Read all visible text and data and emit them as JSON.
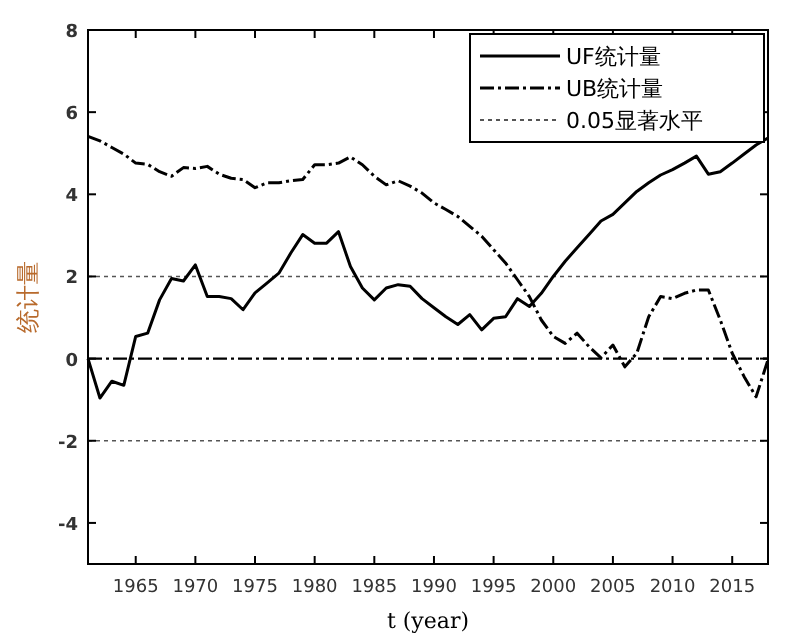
{
  "chart_data": {
    "type": "line",
    "xlabel": "t (year)",
    "ylabel": "统计量",
    "x": [
      1961,
      1962,
      1963,
      1964,
      1965,
      1966,
      1967,
      1968,
      1969,
      1970,
      1971,
      1972,
      1973,
      1974,
      1975,
      1976,
      1977,
      1978,
      1979,
      1980,
      1981,
      1982,
      1983,
      1984,
      1985,
      1986,
      1987,
      1988,
      1989,
      1990,
      1991,
      1992,
      1993,
      1994,
      1995,
      1996,
      1997,
      1998,
      1999,
      2000,
      2001,
      2002,
      2003,
      2004,
      2005,
      2006,
      2007,
      2008,
      2009,
      2010,
      2011,
      2012,
      2013,
      2014,
      2015,
      2016,
      2017,
      2018
    ],
    "series": [
      {
        "name": "UF统计量",
        "color": "#000000",
        "line_style": "solid",
        "values": [
          0,
          -0.96,
          -0.55,
          -0.65,
          0.54,
          0.62,
          1.43,
          1.95,
          1.89,
          2.28,
          1.51,
          1.51,
          1.46,
          1.19,
          1.6,
          1.84,
          2.08,
          2.57,
          3.02,
          2.81,
          2.81,
          3.09,
          2.24,
          1.72,
          1.43,
          1.72,
          1.8,
          1.76,
          1.46,
          1.24,
          1.02,
          0.83,
          1.07,
          0.7,
          0.98,
          1.02,
          1.46,
          1.27,
          1.59,
          2.0,
          2.37,
          2.7,
          3.02,
          3.35,
          3.51,
          3.79,
          4.07,
          4.28,
          4.47,
          4.6,
          4.76,
          4.93,
          4.49,
          4.55,
          4.76,
          4.98,
          5.2,
          5.37
        ]
      },
      {
        "name": "UB统计量",
        "color": "#000000",
        "line_style": "dashdot",
        "values": [
          5.41,
          5.3,
          5.14,
          4.98,
          4.76,
          4.73,
          4.55,
          4.44,
          4.65,
          4.63,
          4.68,
          4.49,
          4.39,
          4.36,
          4.16,
          4.28,
          4.28,
          4.33,
          4.36,
          4.72,
          4.72,
          4.76,
          4.91,
          4.72,
          4.44,
          4.23,
          4.33,
          4.2,
          4.03,
          3.79,
          3.63,
          3.46,
          3.22,
          2.98,
          2.65,
          2.33,
          1.92,
          1.51,
          0.94,
          0.54,
          0.37,
          0.62,
          0.29,
          0.02,
          0.33,
          -0.2,
          0.13,
          1.02,
          1.51,
          1.46,
          1.59,
          1.67,
          1.67,
          0.94,
          0.13,
          -0.44,
          -0.93,
          -0.03
        ]
      }
    ],
    "ref_lines": [
      {
        "axis": "y",
        "value": 2,
        "label": "0.05显著水平",
        "color": "#555555",
        "line_style": "dotted"
      },
      {
        "axis": "y",
        "value": -2,
        "color": "#555555",
        "line_style": "dotted"
      },
      {
        "axis": "y",
        "value": 0,
        "color": "#000000",
        "line_style": "dashdot"
      }
    ],
    "xlim": [
      1961,
      2018
    ],
    "xticks": [
      1965,
      1970,
      1975,
      1980,
      1985,
      1990,
      1995,
      2000,
      2005,
      2010,
      2015
    ],
    "ylim": [
      -5,
      8
    ],
    "yticks": [
      -4,
      -2,
      0,
      2,
      4,
      6,
      8
    ],
    "legend": "top right",
    "grid": false
  }
}
